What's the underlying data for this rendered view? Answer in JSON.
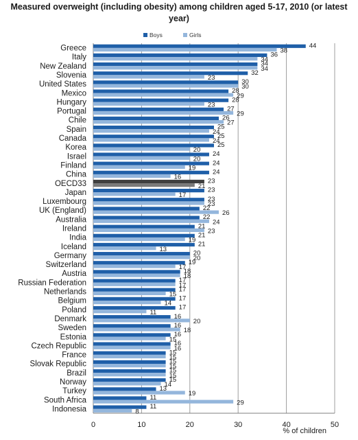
{
  "chart_data": {
    "type": "bar",
    "orientation": "horizontal",
    "title": "Measured overweight (including obesity) among children aged 5-17, 2010 (or latest year)",
    "xlabel": "% of children",
    "ylabel": "",
    "xlim": [
      0,
      50
    ],
    "xticks": [
      0,
      10,
      20,
      30,
      40,
      50
    ],
    "grid": true,
    "legend_position": "top",
    "categories": [
      "Greece",
      "Italy",
      "New Zealand",
      "Slovenia",
      "United States",
      "Mexico",
      "Hungary",
      "Portugal",
      "Chile",
      "Spain",
      "Canada",
      "Korea",
      "Israel",
      "Finland",
      "China",
      "OECD33",
      "Japan",
      "Luxembourg",
      "UK (England)",
      "Australia",
      "Ireland",
      "India",
      "Iceland",
      "Germany",
      "Switzerland",
      "Austria",
      "Russian Federation",
      "Netherlands",
      "Belgium",
      "Poland",
      "Denmark",
      "Sweden",
      "Estonia",
      "Czech Republic",
      "France",
      "Slovak Republic",
      "Brazil",
      "Norway",
      "Turkey",
      "South Africa",
      "Indonesia"
    ],
    "series": [
      {
        "name": "Boys",
        "color": "#1f5fa8",
        "values": [
          44,
          36,
          34,
          32,
          30,
          28,
          28,
          27,
          26,
          25,
          25,
          25,
          24,
          24,
          24,
          23,
          23,
          23,
          22,
          22,
          21,
          21,
          21,
          20,
          19,
          18,
          17,
          17,
          17,
          17,
          16,
          16,
          16,
          16,
          15,
          15,
          15,
          15,
          13,
          11,
          11
        ]
      },
      {
        "name": "Girls",
        "color": "#94b6dc",
        "values": [
          38,
          34,
          34,
          23,
          30,
          29,
          23,
          29,
          27,
          24,
          24,
          20,
          20,
          19,
          16,
          21,
          17,
          23,
          26,
          24,
          23,
          19,
          13,
          20,
          17,
          18,
          17,
          15,
          14,
          11,
          20,
          18,
          15,
          16,
          15,
          15,
          15,
          14,
          19,
          29,
          8
        ]
      }
    ],
    "highlight": {
      "category": "OECD33",
      "color": "#3f3f3f"
    }
  }
}
